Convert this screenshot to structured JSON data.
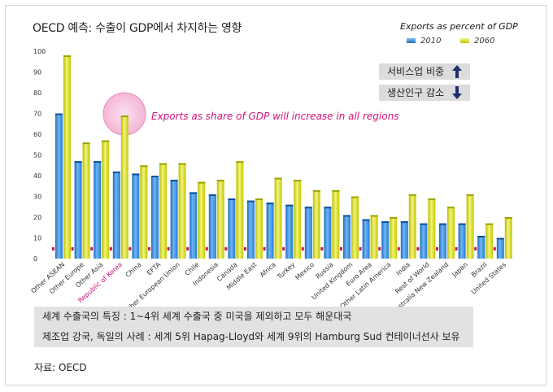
{
  "title": "OECD 예측: 수출이 GDP에서 차지하는 영향",
  "legend": {
    "title": "Exports as percent of GDP",
    "items": [
      {
        "label": "2010",
        "color": "#3a8fd8"
      },
      {
        "label": "2060",
        "color": "#d9de20"
      }
    ]
  },
  "callouts": [
    {
      "label": "서비스업 비중",
      "icon": "arrow-up-icon"
    },
    {
      "label": "생산인구 감소",
      "icon": "arrow-down-icon"
    }
  ],
  "annotation": "Exports as share of GDP will increase in all regions",
  "highlight_color": "#d1127a",
  "info": {
    "line1": "세계 수출국의 특징 : 1~4위 세계 수출국 중 미국을 제외하고 모두 해운대국",
    "line2": "제조업 강국, 독일의 사례 : 세계 5위 Hapag-Lloyd와 세계 9위의 Hamburg Sud 컨테이너선사 보유"
  },
  "source": "자료:  OECD",
  "chart_data": {
    "type": "bar",
    "ylim": [
      0,
      100
    ],
    "yticks": [
      0,
      10,
      20,
      30,
      40,
      50,
      60,
      70,
      80,
      90,
      100
    ],
    "grid": false,
    "legend_position": "top-right",
    "highlighted_category": "Republic of Korea",
    "categories": [
      "Other ASEAN",
      "Other Europe",
      "Other Asia",
      "Republic of Korea",
      "China",
      "EFTA",
      "Other European Union",
      "Chile",
      "Indonesia",
      "Canada",
      "Middle East",
      "Africa",
      "Turkey",
      "Mexico",
      "Russia",
      "United Kingdom",
      "Euro Area",
      "Other Latin America",
      "India",
      "Rest of World",
      "Australia New Zealand",
      "Japan",
      "Brazil",
      "United States"
    ],
    "series": [
      {
        "name": "2010",
        "values": [
          70,
          47,
          47,
          42,
          41,
          40,
          38,
          32,
          31,
          29,
          28,
          27,
          26,
          25,
          25,
          21,
          19,
          18,
          18,
          17,
          17,
          17,
          11,
          10
        ]
      },
      {
        "name": "2060",
        "values": [
          98,
          56,
          57,
          69,
          45,
          46,
          46,
          37,
          38,
          47,
          29,
          39,
          38,
          33,
          33,
          30,
          21,
          20,
          31,
          29,
          25,
          31,
          17,
          20
        ]
      }
    ]
  }
}
